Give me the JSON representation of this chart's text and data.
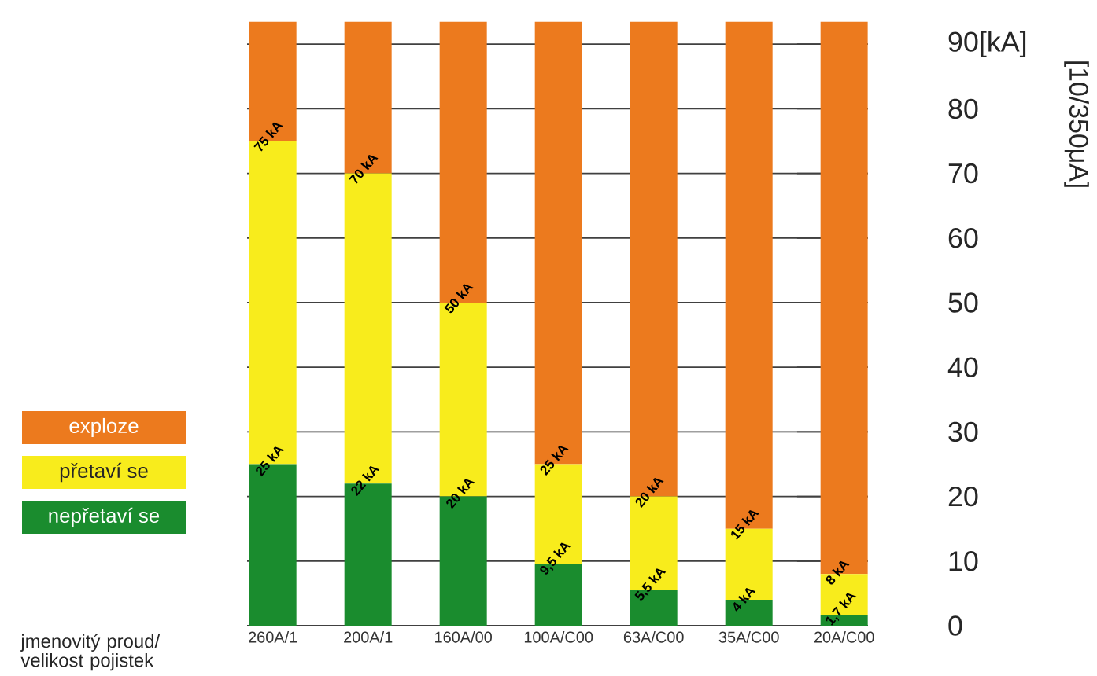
{
  "chart_data": {
    "type": "bar",
    "stacked": true,
    "xlabel": "jmenovitý proud/ velikost pojistek",
    "ylabel": "[10/350μA]",
    "categories": [
      "260A/1",
      "200A/1",
      "160A/00",
      "100A/C00",
      "63A/C00",
      "35A/C00",
      "20A/C00"
    ],
    "series": [
      {
        "name": "nepřetaví se",
        "color": "#1a8c2e",
        "values": [
          25,
          22,
          20,
          9.5,
          5.5,
          4,
          1.7
        ],
        "value_labels": [
          "25 kA",
          "22 kA",
          "20 kA",
          "9,5 kA",
          "5,5 kA",
          "4 kA",
          "1,7 kA"
        ]
      },
      {
        "name": "přetaví se",
        "color": "#f8ec1c",
        "values": [
          50,
          48,
          30,
          15.5,
          14.5,
          11,
          6.3
        ]
      },
      {
        "name": "exploze",
        "color": "#ec7a1e",
        "values": [
          18.5,
          23.5,
          43.5,
          68.5,
          73.5,
          78.5,
          85.5
        ]
      }
    ],
    "annotations": [
      {
        "text": "75 kA",
        "x": "260A/1",
        "y": 75
      },
      {
        "text": "70 kA",
        "x": "200A/1",
        "y": 70
      },
      {
        "text": "50 kA",
        "x": "160A/00",
        "y": 50
      },
      {
        "text": "25 kA",
        "x": "100A/C00",
        "y": 25
      },
      {
        "text": "20 kA",
        "x": "63A/C00",
        "y": 20
      },
      {
        "text": "15 kA",
        "x": "35A/C00",
        "y": 15
      },
      {
        "text": "8 kA",
        "x": "20A/C00",
        "y": 8
      }
    ],
    "ylim": [
      0,
      93.5
    ],
    "yticks": [
      0,
      10,
      20,
      30,
      40,
      50,
      60,
      70,
      80,
      {
        "value": 90,
        "label": "90[kA]"
      }
    ],
    "grid": "y",
    "legend": "left"
  }
}
